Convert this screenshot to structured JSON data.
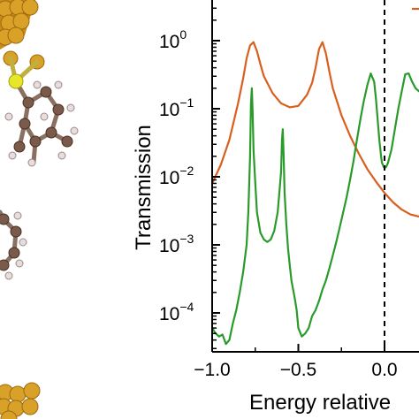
{
  "chart_data": {
    "type": "line",
    "title": "",
    "xlabel": "Energy relative",
    "ylabel": "Transmission",
    "xlim": [
      -1.0,
      0.22
    ],
    "ylim": [
      3e-05,
      1.8
    ],
    "yscale": "log",
    "grid": false,
    "legend": "top-right (cut off)",
    "xticks": [
      -1.0,
      -0.5,
      0.0
    ],
    "xtick_labels": [
      "−1.0",
      "−0.5",
      "0.0"
    ],
    "yticks": [
      0.0001,
      0.001,
      0.01,
      0.1,
      1
    ],
    "ytick_base": "10",
    "ytick_exponents": [
      "−4",
      "−3",
      "−2",
      "−1",
      "0"
    ],
    "reference_line": {
      "x": 0.0,
      "style": "dashed",
      "color": "#000000"
    },
    "series": [
      {
        "color": "#d95f1e",
        "x": [
          -1.0,
          -0.95,
          -0.9,
          -0.85,
          -0.82,
          -0.8,
          -0.78,
          -0.76,
          -0.74,
          -0.72,
          -0.7,
          -0.65,
          -0.6,
          -0.55,
          -0.5,
          -0.45,
          -0.42,
          -0.4,
          -0.38,
          -0.36,
          -0.34,
          -0.32,
          -0.3,
          -0.25,
          -0.2,
          -0.15,
          -0.1,
          -0.05,
          0.0,
          0.05,
          0.1,
          0.15,
          0.2,
          0.22
        ],
        "values": [
          0.008,
          0.015,
          0.035,
          0.12,
          0.28,
          0.55,
          0.85,
          0.95,
          0.7,
          0.45,
          0.3,
          0.17,
          0.12,
          0.105,
          0.11,
          0.16,
          0.24,
          0.4,
          0.75,
          0.95,
          0.65,
          0.35,
          0.2,
          0.08,
          0.04,
          0.022,
          0.013,
          0.0085,
          0.0058,
          0.0042,
          0.0033,
          0.0028,
          0.0026,
          0.0026
        ]
      },
      {
        "color": "#2a9a2a",
        "x": [
          -1.0,
          -0.98,
          -0.96,
          -0.94,
          -0.92,
          -0.9,
          -0.88,
          -0.86,
          -0.84,
          -0.82,
          -0.8,
          -0.79,
          -0.78,
          -0.775,
          -0.77,
          -0.765,
          -0.76,
          -0.75,
          -0.74,
          -0.72,
          -0.7,
          -0.68,
          -0.66,
          -0.64,
          -0.62,
          -0.61,
          -0.6,
          -0.595,
          -0.59,
          -0.585,
          -0.58,
          -0.57,
          -0.56,
          -0.55,
          -0.54,
          -0.53,
          -0.52,
          -0.51,
          -0.5,
          -0.48,
          -0.46,
          -0.44,
          -0.42,
          -0.4,
          -0.38,
          -0.36,
          -0.34,
          -0.32,
          -0.3,
          -0.28,
          -0.26,
          -0.24,
          -0.22,
          -0.2,
          -0.18,
          -0.16,
          -0.14,
          -0.12,
          -0.1,
          -0.08,
          -0.06,
          -0.05,
          -0.04,
          -0.03,
          -0.02,
          -0.015,
          -0.01,
          -0.005,
          0.0,
          0.01,
          0.02,
          0.04,
          0.06,
          0.08,
          0.1,
          0.12,
          0.14,
          0.16,
          0.18,
          0.2,
          0.22
        ],
        "values": [
          6e-05,
          5e-05,
          4.5e-05,
          4.8e-05,
          3.5e-05,
          4e-05,
          7e-05,
          0.00011,
          0.0002,
          0.0004,
          0.001,
          0.003,
          0.02,
          0.12,
          0.2,
          0.09,
          0.025,
          0.008,
          0.003,
          0.0015,
          0.0012,
          0.0011,
          0.0012,
          0.0016,
          0.003,
          0.006,
          0.012,
          0.035,
          0.05,
          0.02,
          0.006,
          0.002,
          0.0009,
          0.0005,
          0.0003,
          0.00022,
          0.00016,
          0.00011,
          6e-05,
          4.5e-05,
          5e-05,
          6e-05,
          9e-05,
          0.00011,
          0.00015,
          0.00022,
          0.0003,
          0.00045,
          0.0007,
          0.0011,
          0.0018,
          0.003,
          0.005,
          0.009,
          0.017,
          0.035,
          0.07,
          0.13,
          0.22,
          0.33,
          0.25,
          0.14,
          0.07,
          0.035,
          0.02,
          0.016,
          0.015,
          0.014,
          0.0135,
          0.014,
          0.016,
          0.025,
          0.05,
          0.1,
          0.18,
          0.32,
          0.33,
          0.25,
          0.2,
          0.18,
          0.17
        ]
      }
    ]
  }
}
